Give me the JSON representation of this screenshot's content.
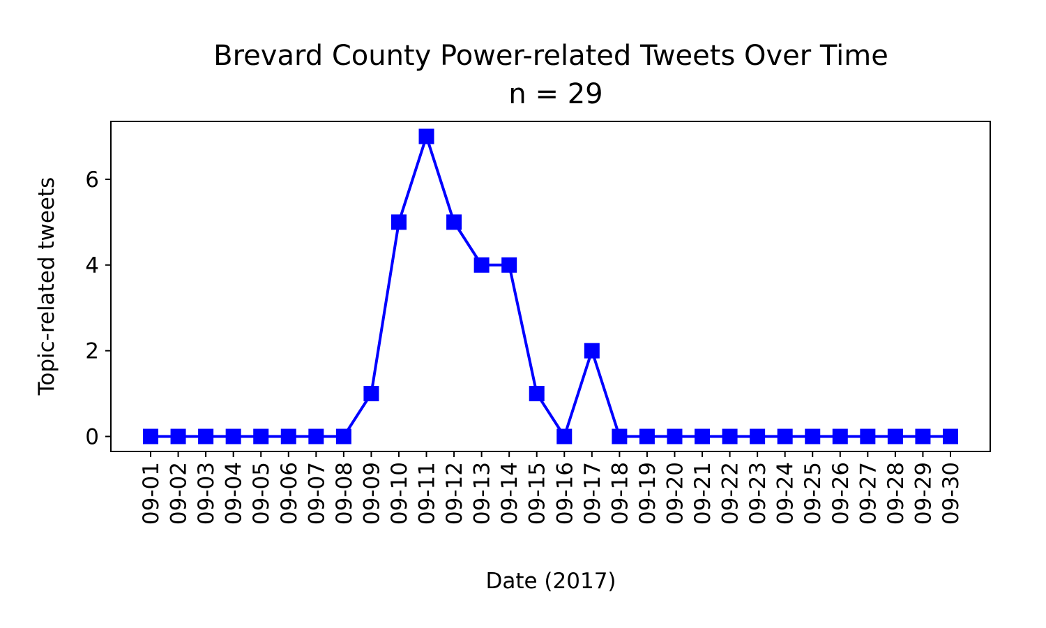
{
  "chart_data": {
    "type": "line",
    "title": "Brevard County Power-related Tweets Over Time",
    "subtitle": "n = 29",
    "xlabel": "Date (2017)",
    "ylabel": "Topic-related tweets",
    "categories": [
      "09-01",
      "09-02",
      "09-03",
      "09-04",
      "09-05",
      "09-06",
      "09-07",
      "09-08",
      "09-09",
      "09-10",
      "09-11",
      "09-12",
      "09-13",
      "09-14",
      "09-15",
      "09-16",
      "09-17",
      "09-18",
      "09-19",
      "09-20",
      "09-21",
      "09-22",
      "09-23",
      "09-24",
      "09-25",
      "09-26",
      "09-27",
      "09-28",
      "09-29",
      "09-30"
    ],
    "series": [
      {
        "values": [
          0,
          0,
          0,
          0,
          0,
          0,
          0,
          0,
          1,
          5,
          7,
          5,
          4,
          4,
          1,
          0,
          2,
          0,
          0,
          0,
          0,
          0,
          0,
          0,
          0,
          0,
          0,
          0,
          0,
          0
        ],
        "color": "#0000ff",
        "marker": "square"
      }
    ],
    "yticks": [
      0,
      2,
      4,
      6
    ],
    "ylim": [
      -0.35,
      7.35
    ],
    "grid": false,
    "legend": "none"
  }
}
